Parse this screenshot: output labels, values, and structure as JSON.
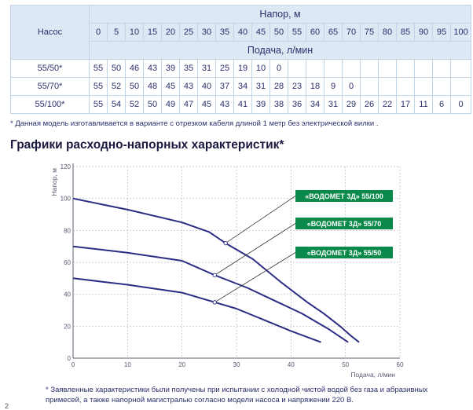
{
  "table": {
    "pump_header": "Насос",
    "head_header": "Напор, м",
    "flow_header": "Подача, л/мин",
    "head_values": [
      "0",
      "5",
      "10",
      "15",
      "20",
      "25",
      "30",
      "35",
      "40",
      "45",
      "50",
      "55",
      "60",
      "65",
      "70",
      "75",
      "80",
      "85",
      "90",
      "95",
      "100"
    ],
    "rows": [
      {
        "name": "55/50*",
        "values": [
          "55",
          "50",
          "46",
          "43",
          "39",
          "35",
          "31",
          "25",
          "19",
          "10",
          "0"
        ]
      },
      {
        "name": "55/70*",
        "values": [
          "55",
          "52",
          "50",
          "48",
          "45",
          "43",
          "40",
          "37",
          "34",
          "31",
          "28",
          "23",
          "18",
          "9",
          "0"
        ]
      },
      {
        "name": "55/100*",
        "values": [
          "55",
          "54",
          "52",
          "50",
          "49",
          "47",
          "45",
          "43",
          "41",
          "39",
          "38",
          "36",
          "34",
          "31",
          "29",
          "26",
          "22",
          "17",
          "11",
          "6",
          "0"
        ]
      }
    ]
  },
  "note_top": "* Данная модель изготавливается в варианте с отрезком кабеля длиной 1 метр без электрической вилки .",
  "section_title": "Графики расходно-напорных характеристик*",
  "chart_data": {
    "type": "line",
    "title": "",
    "xlabel": "Подача, л/мин",
    "ylabel": "Напор, м",
    "xlim": [
      0,
      60
    ],
    "ylim": [
      0,
      120
    ],
    "x_ticks": [
      0,
      10,
      20,
      30,
      40,
      50,
      60
    ],
    "y_ticks": [
      0,
      20,
      40,
      60,
      80,
      100,
      120
    ],
    "grid": "dashed",
    "series": [
      {
        "name": "«ВОДОМЕТ 3Д» 55/100",
        "x": [
          0,
          10,
          20,
          25,
          28,
          33,
          38,
          43,
          46,
          49,
          51,
          52.5
        ],
        "y": [
          100,
          93,
          85,
          79,
          72,
          62,
          48,
          35,
          28,
          20,
          14,
          10
        ]
      },
      {
        "name": "«ВОДОМЕТ 3Д» 55/70",
        "x": [
          0,
          10,
          20,
          26,
          32,
          37,
          42,
          47,
          50.5
        ],
        "y": [
          70,
          66,
          61,
          52,
          44,
          36,
          28,
          18,
          10
        ]
      },
      {
        "name": "«ВОДОМЕТ 3Д» 55/50",
        "x": [
          0,
          10,
          20,
          26,
          30,
          35,
          40,
          45.5
        ],
        "y": [
          50,
          46,
          41,
          35,
          31,
          24,
          17,
          10
        ]
      }
    ],
    "callout_points": [
      {
        "series": 0,
        "x": 28,
        "y": 72
      },
      {
        "series": 1,
        "x": 26,
        "y": 52
      },
      {
        "series": 2,
        "x": 26,
        "y": 35
      }
    ],
    "legend_color": "#0a8a4a",
    "line_color": "#2b2d85"
  },
  "note_bottom": "* Заявленные характеристики были получены при испытании с холодной чистой водой без газа и абразивных примесей, а также напорной магистралью согласно модели насоса и напряжении  220 В.",
  "page_number": "2"
}
